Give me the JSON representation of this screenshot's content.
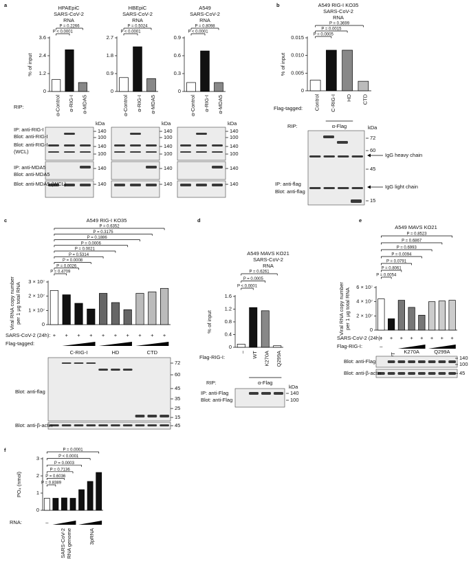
{
  "chart_data": [
    {
      "type": "bar",
      "panel": "a",
      "title": [
        "HPAEpiC",
        "SARS-CoV-2",
        "RNA"
      ],
      "ylabel": [
        "% of input"
      ],
      "categories": [
        "α-Control",
        "α-RIG-I",
        "α-MDA5"
      ],
      "values": [
        0.8,
        2.8,
        0.6
      ],
      "colors": [
        "#ffffff",
        "#111111",
        "#888888"
      ],
      "ylim": [
        0,
        3.6
      ],
      "yticks": [
        0,
        1.2,
        2.4,
        3.6
      ],
      "comparisons": [
        null,
        "P < 0.0001",
        "P = 0.2266"
      ],
      "rows": [
        {
          "label": "RIP:"
        }
      ],
      "blot": {
        "labels": [
          "IP: anti-RIG-I",
          "Blot: anti-RIG-I",
          "Blot: anti-RIG-I",
          "(WCL)",
          "IP: anti-MDA5",
          "Blot: anti-MDA5",
          "Blot: anti-MDA5 (WCL)"
        ],
        "unit": "kDa",
        "markers": [
          "140",
          "100",
          "140",
          "100",
          "140",
          "140"
        ]
      }
    },
    {
      "type": "bar",
      "title": [
        "HBEpiC",
        "SARS-CoV-2",
        "RNA"
      ],
      "categories": [
        "α-Control",
        "α-RIG-I",
        "α-MDA5"
      ],
      "values": [
        0.7,
        2.25,
        0.65
      ],
      "colors": [
        "#ffffff",
        "#111111",
        "#888888"
      ],
      "ylim": [
        0,
        2.7
      ],
      "yticks": [
        0,
        0.9,
        1.8,
        2.7
      ],
      "comparisons": [
        null,
        "P < 0.0001",
        "P = 0.5024"
      ],
      "blot": {
        "unit": "kDa",
        "markers": [
          "140",
          "100",
          "140",
          "100",
          "140",
          "140"
        ]
      }
    },
    {
      "type": "bar",
      "title": [
        "A549",
        "SARS-CoV-2",
        "RNA"
      ],
      "categories": [
        "α-Control",
        "α-RIG-I",
        "α-MDA5"
      ],
      "values": [
        0.15,
        0.68,
        0.15
      ],
      "colors": [
        "#ffffff",
        "#111111",
        "#888888"
      ],
      "ylim": [
        0,
        0.9
      ],
      "yticks": [
        0,
        0.3,
        0.6,
        0.9
      ],
      "comparisons": [
        null,
        "P < 0.0001",
        "P = 0.8098"
      ],
      "blot": {
        "unit": "kDa",
        "markers": [
          "140",
          "100",
          "140",
          "100",
          "140",
          "140"
        ]
      }
    },
    {
      "type": "bar",
      "panel": "b",
      "title": [
        "A549 RIG-I KO35",
        "SARS-CoV-2",
        "RNA"
      ],
      "ylabel": [
        "% of input"
      ],
      "categories": [
        "Control",
        "C-RIG-I",
        "HD",
        "CTD"
      ],
      "values": [
        0.003,
        0.0115,
        0.0115,
        0.0027
      ],
      "colors": [
        "#ffffff",
        "#111111",
        "#888888",
        "#bbbbbb"
      ],
      "ylim": [
        0,
        0.015
      ],
      "yticks": [
        0,
        0.005,
        {
          "value": 0.01,
          "label": "0.010"
        },
        0.015
      ],
      "comparisons": [
        null,
        "P = 0.0005",
        "P = 0.0015",
        "P = 0.3699"
      ],
      "rows": [
        {
          "label": "Flag-tagged:"
        },
        {
          "label": "RIP:",
          "items": [
            "α-Flag"
          ]
        }
      ],
      "blot": {
        "labels": [
          "IP: anti-flag",
          "Blot: anti-flag"
        ],
        "unit": "kDa",
        "markers": [
          "72",
          "60",
          "45",
          "15"
        ],
        "annotations": [
          "IgG heavy chain",
          "IgG light chain"
        ]
      }
    },
    {
      "type": "bar",
      "panel": "c",
      "title": [
        "A549 RIG-I KO35"
      ],
      "ylabel": [
        "Viral RNA copy number",
        "per 1 µg total RNA"
      ],
      "values": [
        24000000,
        21000000,
        15000000,
        11000000,
        22000000,
        15500000,
        10500000,
        22000000,
        23000000,
        25500000
      ],
      "colors": [
        "#ffffff",
        "#111111",
        "#111111",
        "#111111",
        "#666666",
        "#666666",
        "#666666",
        "#bbbbbb",
        "#bbbbbb",
        "#bbbbbb"
      ],
      "ylim": [
        0,
        30000000
      ],
      "yticks": [
        0,
        {
          "value": 10000000,
          "label": "1 × 10⁷"
        },
        {
          "value": 20000000,
          "label": "2 × 10⁷"
        },
        {
          "value": 30000000,
          "label": "3 × 10⁷"
        }
      ],
      "comparisons": [
        null,
        "P = 0.4709",
        "P = 0.0026",
        "P = 0.0008",
        "P = 0.5314",
        "P = 0.0021",
        "P = 0.0006",
        "P = 0.1886",
        "P = 0.3175",
        "P = 0.6352"
      ],
      "rows": [
        {
          "label": "SARS-CoV-2 (24h):",
          "items": [
            "+",
            "+",
            "+",
            "+",
            "+",
            "+",
            "+",
            "+",
            "+",
            "+"
          ]
        },
        {
          "label": "Flag-tagged:",
          "items": [
            "C-RIG-I",
            "HD",
            "CTD"
          ]
        }
      ],
      "blot": {
        "labels": [
          "Blot: anti-flag",
          "Blot: anti-β-actin"
        ],
        "markers": [
          "72",
          "60",
          "45",
          "35",
          "25",
          "15",
          "45"
        ]
      }
    },
    {
      "type": "bar",
      "panel": "d",
      "title": [
        "A549 MAVS KO21",
        "SARS-CoV-2",
        "RNA"
      ],
      "ylabel": [
        "% of input"
      ],
      "categories": [
        "–",
        "WT",
        "K270A",
        "Q299A"
      ],
      "values": [
        0.1,
        1.25,
        1.15,
        0.05
      ],
      "colors": [
        "#ffffff",
        "#111111",
        "#888888",
        "#ffffff"
      ],
      "ylim": [
        0,
        1.6
      ],
      "yticks": [
        0,
        0.4,
        0.8,
        1.2,
        1.6
      ],
      "comparisons": [
        null,
        "P < 0.0001",
        "P = 0.0005",
        "P = 0.6261"
      ],
      "rows": [
        {
          "label": "Flag-RIG-I:"
        },
        {
          "label": "RIP:",
          "items": [
            "α-Flag"
          ]
        }
      ],
      "blot": {
        "labels": [
          "IP: anti-Flag",
          "Blot: anti-Flag"
        ],
        "unit": "kDa",
        "markers": [
          "140",
          "100"
        ]
      }
    },
    {
      "type": "bar",
      "panel": "e",
      "title": [
        "A549 MAVS KO21"
      ],
      "ylabel": [
        "Viral RNA copy number",
        "per 1 µg total RNA"
      ],
      "values": [
        44000000,
        16000000,
        42000000,
        32000000,
        21000000,
        40000000,
        41000000,
        42000000
      ],
      "colors": [
        "#ffffff",
        "#111111",
        "#777777",
        "#777777",
        "#777777",
        "#cccccc",
        "#cccccc",
        "#cccccc"
      ],
      "ylim": [
        0,
        60000000
      ],
      "yticks": [
        0,
        {
          "value": 20000000,
          "label": "2 × 10⁷"
        },
        {
          "value": 40000000,
          "label": "4 × 10⁷"
        },
        {
          "value": 60000000,
          "label": "6 × 10⁷"
        }
      ],
      "comparisons": [
        null,
        "P = 0.0054",
        "P = 0.8061",
        "P = 0.0791",
        "P = 0.0094",
        "P = 0.6993",
        "P = 0.6867",
        "P = 0.8523"
      ],
      "rows": [
        {
          "label": "SARS-CoV-2 (24h):",
          "items": [
            "+",
            "+",
            "+",
            "+",
            "+",
            "+",
            "+",
            "+"
          ]
        },
        {
          "label": "Flag-RIG-I:",
          "items": [
            "–",
            "WT",
            "K270A",
            "Q299A"
          ]
        }
      ],
      "blot": {
        "labels": [
          "Blot: anti-Flag",
          "Blot: anti-β-actin"
        ],
        "markers": [
          "140",
          "100",
          "45"
        ]
      }
    },
    {
      "type": "bar",
      "panel": "f",
      "ylabel": [
        "PO₄ (nmol)"
      ],
      "values": [
        0.7,
        0.7,
        0.72,
        0.7,
        1.2,
        1.68,
        2.2
      ],
      "colors": [
        "#ffffff",
        "#111111",
        "#111111",
        "#111111",
        "#111111",
        "#111111",
        "#111111"
      ],
      "ylim": [
        0,
        3
      ],
      "yticks": [
        0,
        1,
        2,
        3
      ],
      "comparisons": [
        null,
        "P = 0.8389",
        "P = 0.6036",
        "P = 0.7136",
        "P = 0.0003",
        "P < 0.0001",
        "P = 0.0001"
      ],
      "rows": [
        {
          "label": "RNA:",
          "items": [
            "–",
            [
              "SARS-CoV-2",
              "RNA genome"
            ],
            "3pRNA"
          ]
        }
      ]
    }
  ]
}
